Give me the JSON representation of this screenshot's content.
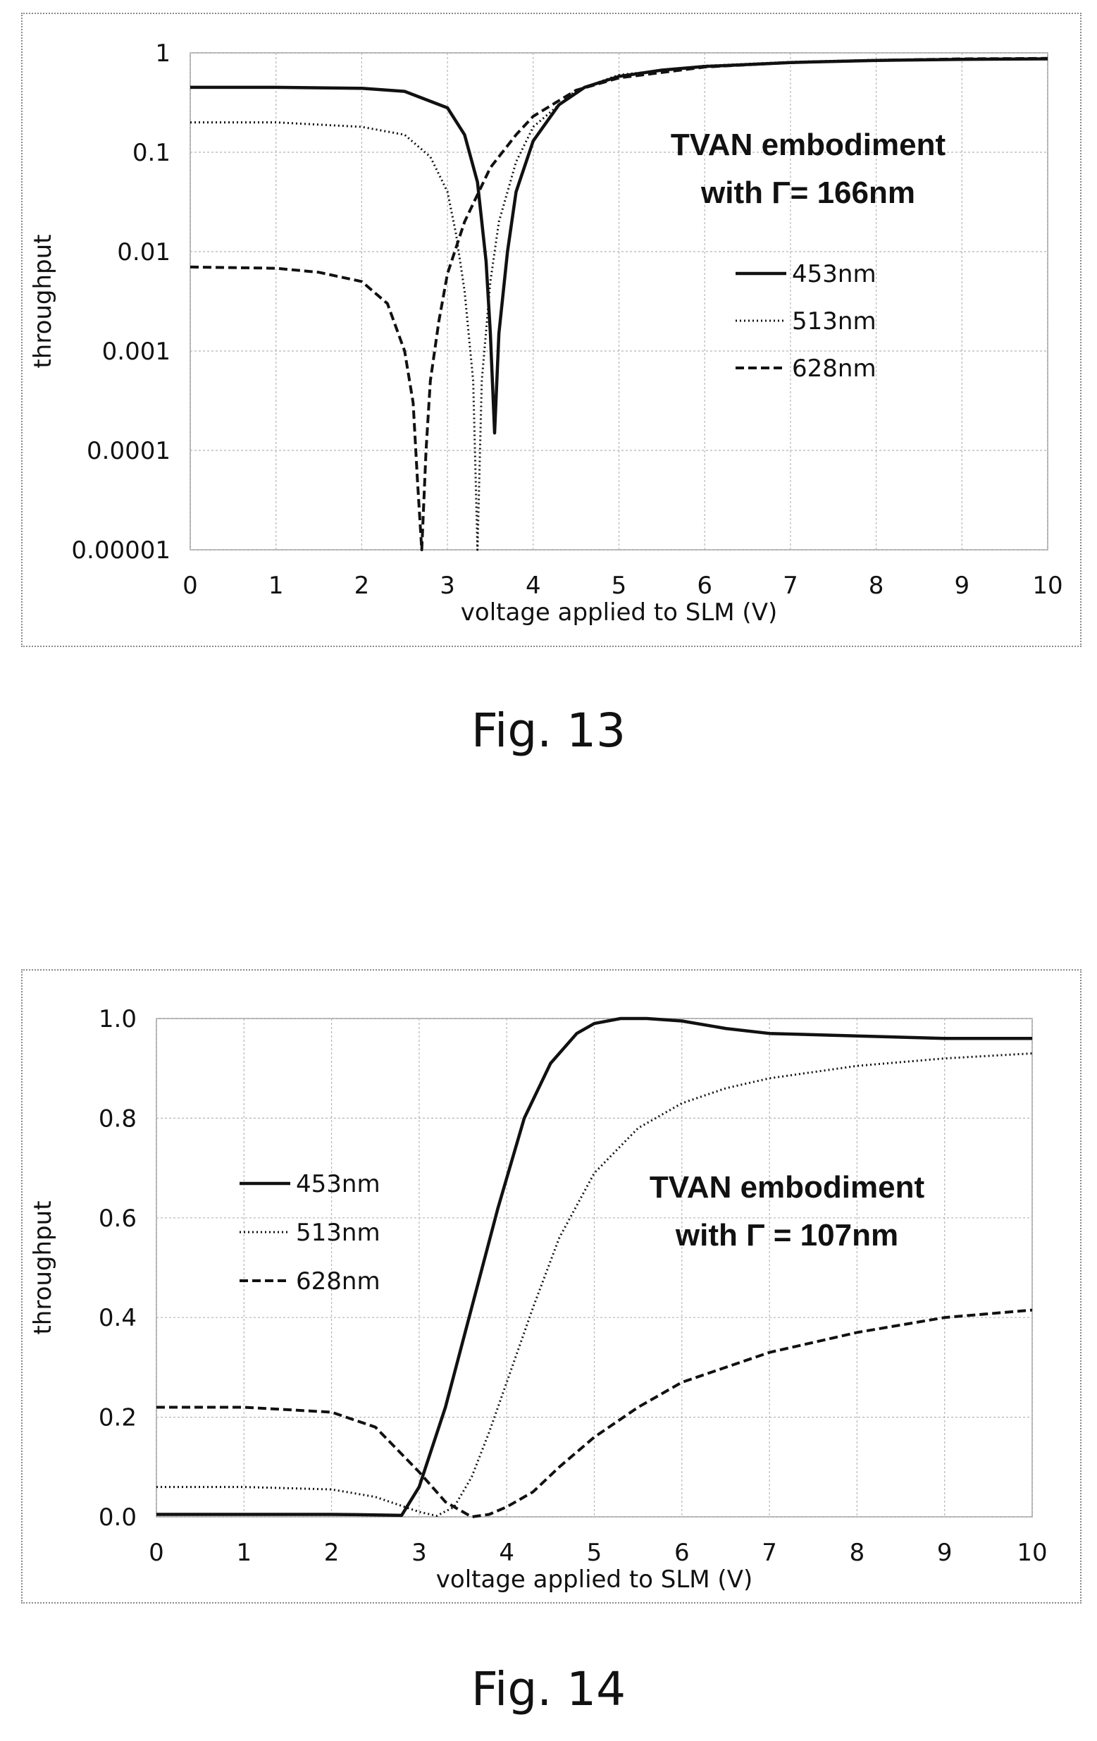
{
  "figures": [
    {
      "caption": "Fig. 13",
      "chart_data": {
        "type": "line",
        "xlabel": "voltage applied to SLM (V)",
        "ylabel": "throughput",
        "yscale": "log",
        "xlim": [
          0,
          10
        ],
        "ylim": [
          1e-05,
          1
        ],
        "x_ticks": [
          "0",
          "1",
          "2",
          "3",
          "4",
          "5",
          "6",
          "7",
          "8",
          "9",
          "10"
        ],
        "y_ticks": [
          "1",
          "0.1",
          "0.01",
          "0.001",
          "0.0001",
          "0.00001"
        ],
        "grid": true,
        "legend_position": "right",
        "annotation": [
          "TVAN embodiment",
          "with Γ= 166nm"
        ],
        "series": [
          {
            "name": "453nm",
            "style": "solid",
            "x": [
              0,
              1,
              2,
              2.5,
              3,
              3.2,
              3.35,
              3.45,
              3.5,
              3.55,
              3.6,
              3.7,
              3.8,
              4,
              4.3,
              4.6,
              5,
              5.5,
              6,
              7,
              8,
              9,
              10
            ],
            "y": [
              0.45,
              0.45,
              0.44,
              0.41,
              0.28,
              0.15,
              0.05,
              0.008,
              0.0015,
              0.00015,
              0.0015,
              0.01,
              0.04,
              0.13,
              0.3,
              0.45,
              0.58,
              0.67,
              0.73,
              0.8,
              0.84,
              0.86,
              0.87
            ]
          },
          {
            "name": "513nm",
            "style": "dotted",
            "x": [
              0,
              1,
              2,
              2.5,
              2.8,
              3.0,
              3.1,
              3.2,
              3.3,
              3.35,
              3.4,
              3.5,
              3.6,
              3.8,
              4,
              4.5,
              5,
              6,
              7,
              8,
              9,
              10
            ],
            "y": [
              0.2,
              0.2,
              0.18,
              0.15,
              0.09,
              0.04,
              0.015,
              0.004,
              0.0005,
              1e-05,
              0.0005,
              0.005,
              0.02,
              0.08,
              0.18,
              0.42,
              0.6,
              0.74,
              0.81,
              0.85,
              0.87,
              0.88
            ]
          },
          {
            "name": "628nm",
            "style": "dashed",
            "x": [
              0,
              1,
              1.5,
              2,
              2.3,
              2.5,
              2.6,
              2.65,
              2.7,
              2.75,
              2.8,
              2.9,
              3,
              3.2,
              3.5,
              3.8,
              4,
              4.5,
              5,
              6,
              7,
              8,
              9,
              10
            ],
            "y": [
              0.007,
              0.0068,
              0.0062,
              0.005,
              0.003,
              0.001,
              0.0003,
              5e-05,
              1e-05,
              0.0001,
              0.0005,
              0.002,
              0.006,
              0.02,
              0.07,
              0.15,
              0.23,
              0.42,
              0.56,
              0.72,
              0.8,
              0.84,
              0.87,
              0.88
            ]
          }
        ]
      }
    },
    {
      "caption": "Fig. 14",
      "chart_data": {
        "type": "line",
        "xlabel": "voltage applied to SLM (V)",
        "ylabel": "throughput",
        "yscale": "linear",
        "xlim": [
          0,
          10
        ],
        "ylim": [
          0,
          1
        ],
        "x_ticks": [
          "0",
          "1",
          "2",
          "3",
          "4",
          "5",
          "6",
          "7",
          "8",
          "9",
          "10"
        ],
        "y_ticks": [
          "1.0",
          "0.8",
          "0.6",
          "0.4",
          "0.2",
          "0.0"
        ],
        "grid": true,
        "legend_position": "left",
        "annotation": [
          "TVAN embodiment",
          "with Γ = 107nm"
        ],
        "series": [
          {
            "name": "453nm",
            "style": "solid",
            "x": [
              0,
              1,
              2,
              2.5,
              2.8,
              3,
              3.3,
              3.6,
              3.9,
              4.2,
              4.5,
              4.8,
              5,
              5.3,
              5.6,
              6,
              6.5,
              7,
              8,
              9,
              10
            ],
            "y": [
              0.005,
              0.005,
              0.005,
              0.004,
              0.003,
              0.06,
              0.22,
              0.42,
              0.62,
              0.8,
              0.91,
              0.97,
              0.99,
              1.0,
              1.0,
              0.995,
              0.98,
              0.97,
              0.965,
              0.96,
              0.96
            ]
          },
          {
            "name": "513nm",
            "style": "dotted",
            "x": [
              0,
              1,
              2,
              2.5,
              3,
              3.2,
              3.4,
              3.6,
              3.8,
              4,
              4.3,
              4.6,
              5,
              5.5,
              6,
              6.5,
              7,
              8,
              9,
              10
            ],
            "y": [
              0.06,
              0.06,
              0.055,
              0.04,
              0.01,
              0.002,
              0.02,
              0.08,
              0.17,
              0.27,
              0.42,
              0.56,
              0.69,
              0.78,
              0.83,
              0.86,
              0.88,
              0.905,
              0.92,
              0.93
            ]
          },
          {
            "name": "628nm",
            "style": "dashed",
            "x": [
              0,
              1,
              2,
              2.5,
              3,
              3.3,
              3.6,
              3.8,
              4,
              4.3,
              4.6,
              5,
              5.5,
              6,
              6.5,
              7,
              8,
              9,
              10
            ],
            "y": [
              0.22,
              0.22,
              0.21,
              0.18,
              0.09,
              0.03,
              0.0,
              0.005,
              0.02,
              0.05,
              0.1,
              0.16,
              0.22,
              0.27,
              0.3,
              0.33,
              0.37,
              0.4,
              0.415
            ]
          }
        ]
      }
    }
  ]
}
